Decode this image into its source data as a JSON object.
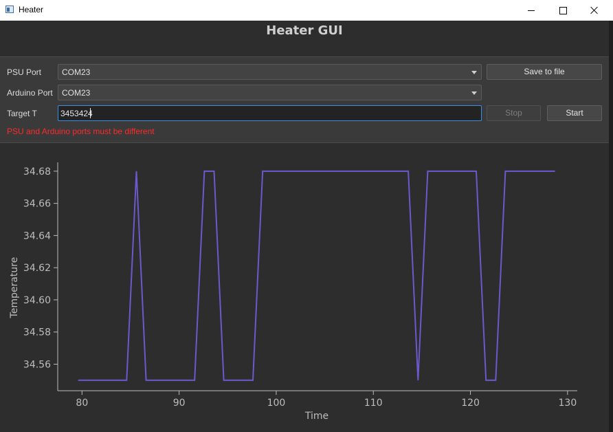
{
  "window": {
    "title": "Heater"
  },
  "app": {
    "title": "Heater GUI"
  },
  "form": {
    "psu_port_label": "PSU Port",
    "psu_port_value": "COM23",
    "arduino_port_label": "Arduino Port",
    "arduino_port_value": "COM23",
    "target_label": "Target T",
    "target_value": "3453424",
    "save_label": "Save to file",
    "stop_label": "Stop",
    "start_label": "Start",
    "error_text": "PSU and Arduino ports must be different"
  },
  "chart_data": {
    "type": "line",
    "xlabel": "Time",
    "ylabel": "Temperature",
    "xlim": [
      77.5,
      131
    ],
    "ylim": [
      34.5435,
      34.6855
    ],
    "xticks": [
      80,
      90,
      100,
      110,
      120,
      130
    ],
    "yticks": [
      34.56,
      34.58,
      34.6,
      34.62,
      34.64,
      34.66,
      34.68
    ],
    "ytick_labels": [
      "34.56",
      "34.58",
      "34.60",
      "34.62",
      "34.64",
      "34.66",
      "34.68"
    ],
    "grid": false,
    "line_color": "#6a5acd",
    "series": [
      {
        "x": [
          79.6,
          84.6,
          85.6,
          86.6,
          91.6,
          92.6,
          93.6,
          94.6,
          97.6,
          98.6,
          113.6,
          114.6,
          115.6,
          120.6,
          121.6,
          122.6,
          123.6,
          128.7
        ],
        "y": [
          34.55,
          34.55,
          34.68,
          34.55,
          34.55,
          34.68,
          34.68,
          34.55,
          34.55,
          34.68,
          34.68,
          34.55,
          34.68,
          34.68,
          34.55,
          34.55,
          34.68,
          34.68
        ]
      }
    ]
  }
}
